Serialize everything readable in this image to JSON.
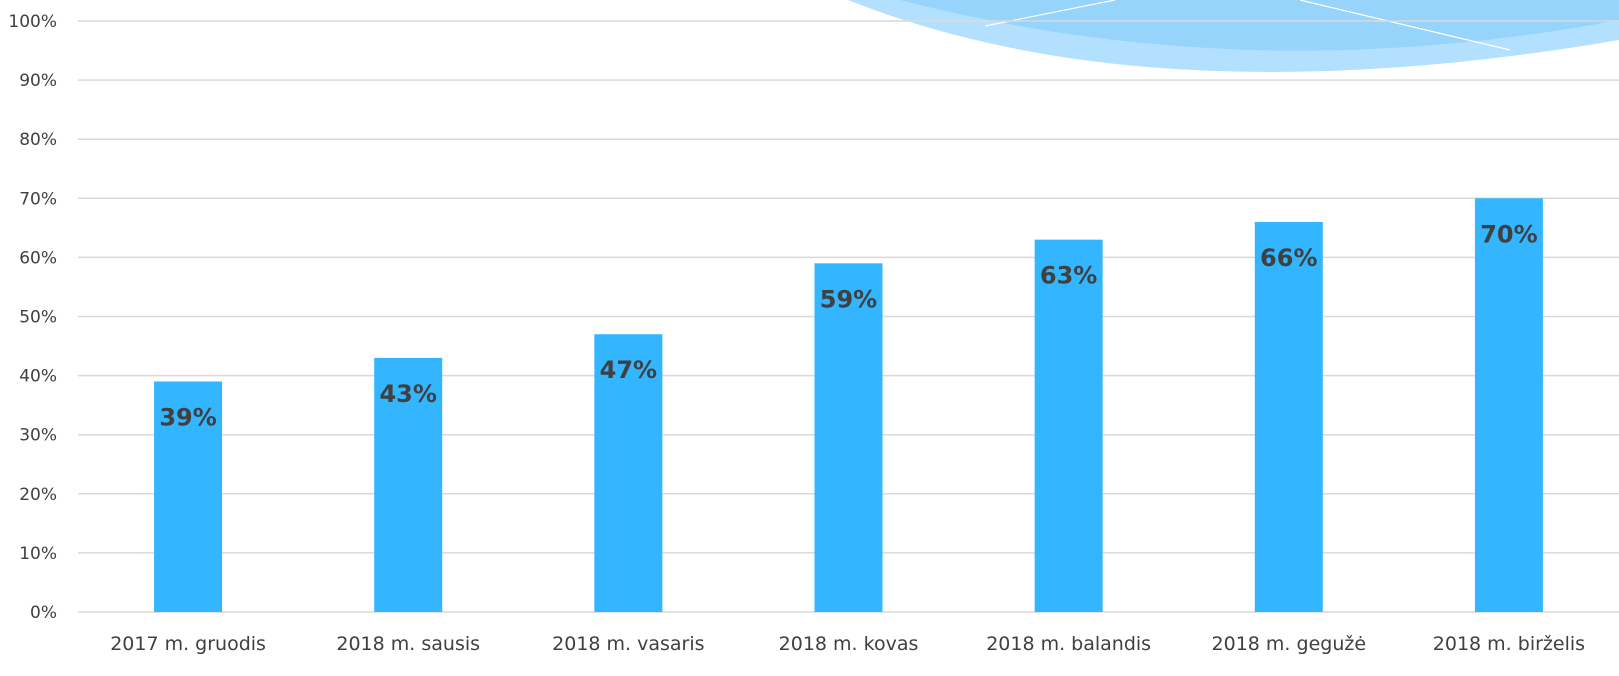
{
  "chart_data": {
    "type": "bar",
    "categories": [
      "2017 m. gruodis",
      "2018 m. sausis",
      "2018 m. vasaris",
      "2018 m. kovas",
      "2018 m. balandis",
      "2018 m. gegužė",
      "2018 m. birželis"
    ],
    "values": [
      39,
      43,
      47,
      59,
      63,
      66,
      70
    ],
    "value_labels": [
      "39%",
      "43%",
      "47%",
      "59%",
      "63%",
      "66%",
      "70%"
    ],
    "ylim": [
      0,
      100
    ],
    "ytick_labels": [
      "0%",
      "10%",
      "20%",
      "30%",
      "40%",
      "50%",
      "60%",
      "70%",
      "80%",
      "90%",
      "100%"
    ],
    "title": "",
    "xlabel": "",
    "ylabel": "",
    "grid": true,
    "legend": "none",
    "colors": {
      "bar": "#33b5ff",
      "decoration_light": "#b3e0ff",
      "decoration_mid": "#7fcbf7"
    }
  }
}
